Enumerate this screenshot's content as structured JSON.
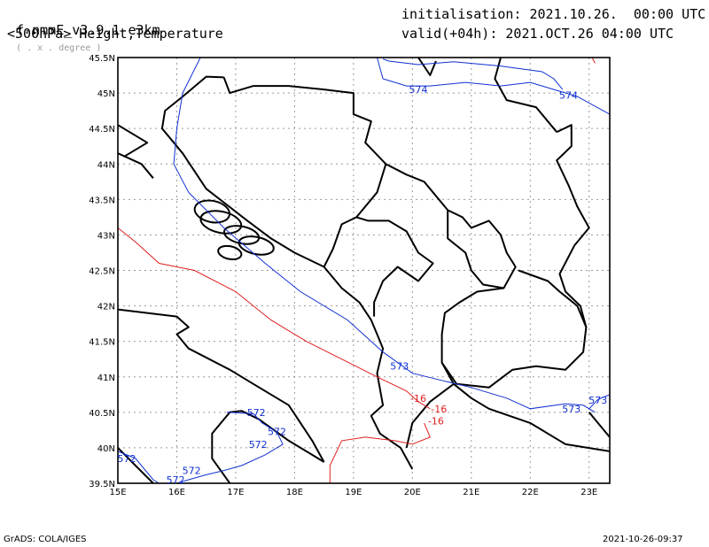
{
  "header": {
    "model": "f-nmmE_v3.9.1-e3km",
    "unit": "( . x . degree )",
    "level_title": "<500hPa> Height,Temperature",
    "init_label": "initialisation:",
    "init_value": "2021.10.26.  00:00 UTC",
    "valid_label": "valid(+04h):",
    "valid_value": "2021.OCT.26 04:00 UTC"
  },
  "footer": {
    "left": "GrADS: COLA/IGES",
    "right": "2021-10-26-09:37"
  },
  "axes": {
    "lon_ticks": [
      "15E",
      "16E",
      "17E",
      "18E",
      "19E",
      "20E",
      "21E",
      "22E",
      "23E"
    ],
    "lat_ticks": [
      "39.5N",
      "40N",
      "40.5N",
      "41N",
      "41.5N",
      "42N",
      "42.5N",
      "43N",
      "43.5N",
      "44N",
      "44.5N",
      "45N",
      "45.5N"
    ],
    "lon_range": [
      15,
      23.35
    ],
    "lat_range": [
      39.5,
      45.5
    ]
  },
  "colors": {
    "height": "#1030d0",
    "temperature": "#e02020",
    "border": "#000000",
    "grid": "#9a9a9a"
  },
  "height_labels": [
    {
      "text": "574",
      "lon": 20.1,
      "lat": 45.05
    },
    {
      "text": "574",
      "lon": 22.65,
      "lat": 44.97
    },
    {
      "text": "573",
      "lon": 19.78,
      "lat": 41.15
    },
    {
      "text": "573",
      "lon": 22.7,
      "lat": 40.55
    },
    {
      "text": "573",
      "lon": 23.15,
      "lat": 40.67
    },
    {
      "text": "572",
      "lon": 17.35,
      "lat": 40.5
    },
    {
      "text": "572",
      "lon": 17.7,
      "lat": 40.23
    },
    {
      "text": "572",
      "lon": 17.38,
      "lat": 40.05
    },
    {
      "text": "572",
      "lon": 15.15,
      "lat": 39.85
    },
    {
      "text": "572",
      "lon": 16.25,
      "lat": 39.68
    },
    {
      "text": "572",
      "lon": 15.98,
      "lat": 39.55
    }
  ],
  "temperature_labels": [
    {
      "text": "-16",
      "lon": 20.1,
      "lat": 40.7
    },
    {
      "text": "-16",
      "lon": 20.45,
      "lat": 40.55
    },
    {
      "text": "-16",
      "lon": 20.4,
      "lat": 40.38
    }
  ],
  "height_contours": [
    [
      [
        16.4,
        45.5
      ],
      [
        16.1,
        45.0
      ],
      [
        16.0,
        44.5
      ],
      [
        15.95,
        44.0
      ],
      [
        16.2,
        43.6
      ],
      [
        16.8,
        43.1
      ],
      [
        17.5,
        42.6
      ],
      [
        18.1,
        42.2
      ],
      [
        18.9,
        41.8
      ],
      [
        19.5,
        41.35
      ],
      [
        20.0,
        41.05
      ],
      [
        20.5,
        40.95
      ],
      [
        21.0,
        40.85
      ],
      [
        21.6,
        40.7
      ],
      [
        22.0,
        40.55
      ],
      [
        22.6,
        40.62
      ],
      [
        22.9,
        40.6
      ],
      [
        23.1,
        40.5
      ]
    ],
    [
      [
        19.4,
        45.5
      ],
      [
        19.5,
        45.2
      ],
      [
        19.9,
        45.1
      ],
      [
        20.3,
        45.1
      ],
      [
        20.9,
        45.15
      ],
      [
        21.5,
        45.1
      ],
      [
        22.0,
        45.15
      ],
      [
        22.4,
        45.05
      ],
      [
        22.8,
        44.95
      ],
      [
        23.35,
        44.7
      ]
    ],
    [
      [
        19.5,
        45.48
      ],
      [
        19.6,
        45.45
      ],
      [
        20.1,
        45.4
      ],
      [
        20.7,
        45.44
      ],
      [
        21.5,
        45.38
      ],
      [
        22.2,
        45.3
      ],
      [
        22.4,
        45.2
      ],
      [
        22.55,
        45.05
      ]
    ],
    [
      [
        23.35,
        40.75
      ],
      [
        23.15,
        40.68
      ],
      [
        23.0,
        40.55
      ]
    ],
    [
      [
        16.85,
        40.5
      ],
      [
        17.3,
        40.48
      ],
      [
        17.45,
        40.35
      ],
      [
        17.7,
        40.22
      ],
      [
        17.8,
        40.05
      ],
      [
        17.5,
        39.9
      ],
      [
        17.1,
        39.75
      ],
      [
        16.8,
        39.68
      ],
      [
        16.5,
        39.62
      ],
      [
        16.2,
        39.55
      ],
      [
        16.0,
        39.5
      ]
    ],
    [
      [
        15.0,
        39.95
      ],
      [
        15.3,
        39.85
      ],
      [
        15.45,
        39.7
      ],
      [
        15.6,
        39.55
      ],
      [
        15.7,
        39.5
      ]
    ]
  ],
  "temperature_contours": [
    [
      [
        15.0,
        43.1
      ],
      [
        15.3,
        42.9
      ],
      [
        15.7,
        42.6
      ],
      [
        16.3,
        42.5
      ],
      [
        17.0,
        42.2
      ],
      [
        17.6,
        41.8
      ],
      [
        18.2,
        41.5
      ],
      [
        18.8,
        41.25
      ],
      [
        19.4,
        41.0
      ],
      [
        19.9,
        40.8
      ],
      [
        20.1,
        40.65
      ],
      [
        20.3,
        40.55
      ]
    ],
    [
      [
        18.6,
        39.5
      ],
      [
        18.6,
        39.75
      ],
      [
        18.8,
        40.1
      ],
      [
        19.2,
        40.15
      ],
      [
        19.7,
        40.1
      ],
      [
        20.0,
        40.05
      ],
      [
        20.3,
        40.15
      ],
      [
        20.2,
        40.35
      ]
    ],
    [
      [
        23.05,
        45.5
      ],
      [
        23.1,
        45.42
      ]
    ]
  ],
  "borders": [
    [
      [
        16.8,
        45.22
      ],
      [
        16.9,
        45.0
      ],
      [
        17.3,
        45.1
      ],
      [
        17.9,
        45.1
      ],
      [
        18.5,
        45.05
      ],
      [
        19.0,
        45.0
      ],
      [
        19.0,
        44.7
      ],
      [
        19.3,
        44.6
      ],
      [
        19.2,
        44.3
      ],
      [
        19.55,
        44.0
      ],
      [
        19.4,
        43.6
      ],
      [
        19.05,
        43.25
      ],
      [
        18.8,
        43.15
      ],
      [
        18.65,
        42.8
      ],
      [
        18.5,
        42.55
      ]
    ],
    [
      [
        16.8,
        45.22
      ],
      [
        16.5,
        45.23
      ],
      [
        16.1,
        44.95
      ],
      [
        15.8,
        44.75
      ],
      [
        15.75,
        44.5
      ],
      [
        16.1,
        44.15
      ],
      [
        16.5,
        43.65
      ],
      [
        17.2,
        43.2
      ],
      [
        17.6,
        42.95
      ],
      [
        18.0,
        42.75
      ],
      [
        18.5,
        42.55
      ]
    ],
    [
      [
        15.0,
        44.55
      ],
      [
        15.3,
        44.4
      ],
      [
        15.5,
        44.3
      ],
      [
        15.1,
        44.1
      ]
    ],
    [
      [
        15.0,
        44.15
      ],
      [
        15.4,
        44.0
      ],
      [
        15.6,
        43.8
      ]
    ],
    [
      [
        18.5,
        42.55
      ],
      [
        18.8,
        42.25
      ],
      [
        19.1,
        42.05
      ],
      [
        19.3,
        41.8
      ],
      [
        19.4,
        41.6
      ],
      [
        19.5,
        41.4
      ],
      [
        19.4,
        41.05
      ],
      [
        19.5,
        40.6
      ],
      [
        19.3,
        40.45
      ],
      [
        19.45,
        40.2
      ],
      [
        19.8,
        40.0
      ],
      [
        20.0,
        39.7
      ]
    ],
    [
      [
        19.05,
        43.25
      ],
      [
        19.25,
        43.2
      ],
      [
        19.6,
        43.2
      ],
      [
        19.9,
        43.05
      ],
      [
        20.1,
        42.75
      ],
      [
        20.35,
        42.6
      ],
      [
        20.1,
        42.35
      ],
      [
        19.75,
        42.55
      ],
      [
        19.5,
        42.35
      ],
      [
        19.35,
        42.05
      ],
      [
        19.35,
        41.85
      ]
    ],
    [
      [
        19.55,
        44.0
      ],
      [
        19.9,
        43.85
      ],
      [
        20.2,
        43.75
      ],
      [
        20.6,
        43.35
      ],
      [
        20.85,
        43.25
      ],
      [
        21.0,
        43.1
      ],
      [
        21.3,
        43.2
      ],
      [
        21.5,
        43.0
      ],
      [
        21.6,
        42.75
      ],
      [
        21.75,
        42.55
      ],
      [
        21.55,
        42.25
      ],
      [
        21.1,
        42.2
      ],
      [
        20.8,
        42.05
      ],
      [
        20.55,
        41.9
      ],
      [
        20.5,
        41.6
      ],
      [
        20.5,
        41.2
      ],
      [
        20.75,
        40.9
      ],
      [
        21.3,
        40.85
      ],
      [
        21.7,
        41.1
      ],
      [
        22.1,
        41.15
      ],
      [
        22.6,
        41.1
      ],
      [
        22.9,
        41.35
      ],
      [
        22.95,
        41.7
      ],
      [
        22.8,
        42.0
      ],
      [
        22.5,
        42.2
      ],
      [
        22.3,
        42.35
      ],
      [
        21.8,
        42.5
      ]
    ],
    [
      [
        20.6,
        43.35
      ],
      [
        20.6,
        42.95
      ],
      [
        20.9,
        42.75
      ],
      [
        21.0,
        42.5
      ],
      [
        21.2,
        42.3
      ],
      [
        21.55,
        42.25
      ]
    ],
    [
      [
        22.45,
        44.45
      ],
      [
        22.7,
        44.55
      ],
      [
        22.7,
        44.25
      ],
      [
        22.45,
        44.05
      ],
      [
        22.65,
        43.7
      ],
      [
        22.8,
        43.4
      ],
      [
        23.0,
        43.1
      ],
      [
        22.75,
        42.85
      ],
      [
        22.5,
        42.45
      ],
      [
        22.6,
        42.2
      ],
      [
        22.85,
        42.0
      ],
      [
        22.95,
        41.7
      ]
    ],
    [
      [
        20.1,
        45.5
      ],
      [
        20.3,
        45.25
      ],
      [
        20.4,
        45.45
      ]
    ],
    [
      [
        21.5,
        45.5
      ],
      [
        21.4,
        45.2
      ],
      [
        21.6,
        44.9
      ],
      [
        22.1,
        44.8
      ],
      [
        22.45,
        44.45
      ]
    ],
    [
      [
        20.5,
        41.2
      ],
      [
        20.7,
        40.9
      ],
      [
        21.0,
        40.7
      ],
      [
        21.3,
        40.55
      ],
      [
        22.0,
        40.35
      ],
      [
        22.6,
        40.05
      ],
      [
        23.35,
        39.95
      ]
    ],
    [
      [
        20.7,
        40.9
      ],
      [
        20.3,
        40.65
      ],
      [
        20.0,
        40.35
      ],
      [
        19.9,
        40.0
      ]
    ],
    [
      [
        16.9,
        39.5
      ],
      [
        16.6,
        39.85
      ],
      [
        16.6,
        40.2
      ],
      [
        16.9,
        40.5
      ],
      [
        17.1,
        40.52
      ],
      [
        17.4,
        40.4
      ],
      [
        17.9,
        40.1
      ],
      [
        18.3,
        39.9
      ],
      [
        18.5,
        39.8
      ]
    ],
    [
      [
        15.0,
        40.0
      ],
      [
        15.3,
        39.75
      ],
      [
        15.6,
        39.5
      ]
    ],
    [
      [
        15.0,
        41.95
      ],
      [
        15.5,
        41.9
      ],
      [
        16.0,
        41.85
      ],
      [
        16.2,
        41.7
      ],
      [
        16.0,
        41.6
      ],
      [
        16.2,
        41.4
      ],
      [
        16.9,
        41.1
      ],
      [
        17.3,
        40.9
      ],
      [
        17.9,
        40.6
      ],
      [
        18.3,
        40.1
      ],
      [
        18.5,
        39.8
      ]
    ],
    [
      [
        23.0,
        40.5
      ],
      [
        23.2,
        40.3
      ],
      [
        23.35,
        40.15
      ]
    ]
  ],
  "islands": [
    {
      "lon": 16.6,
      "lat": 43.33,
      "rx": 0.3,
      "ry": 0.05
    },
    {
      "lon": 16.75,
      "lat": 43.18,
      "rx": 0.35,
      "ry": 0.05
    },
    {
      "lon": 17.1,
      "lat": 43.0,
      "rx": 0.3,
      "ry": 0.04
    },
    {
      "lon": 17.35,
      "lat": 42.85,
      "rx": 0.3,
      "ry": 0.04
    },
    {
      "lon": 16.9,
      "lat": 42.75,
      "rx": 0.2,
      "ry": 0.03
    }
  ]
}
